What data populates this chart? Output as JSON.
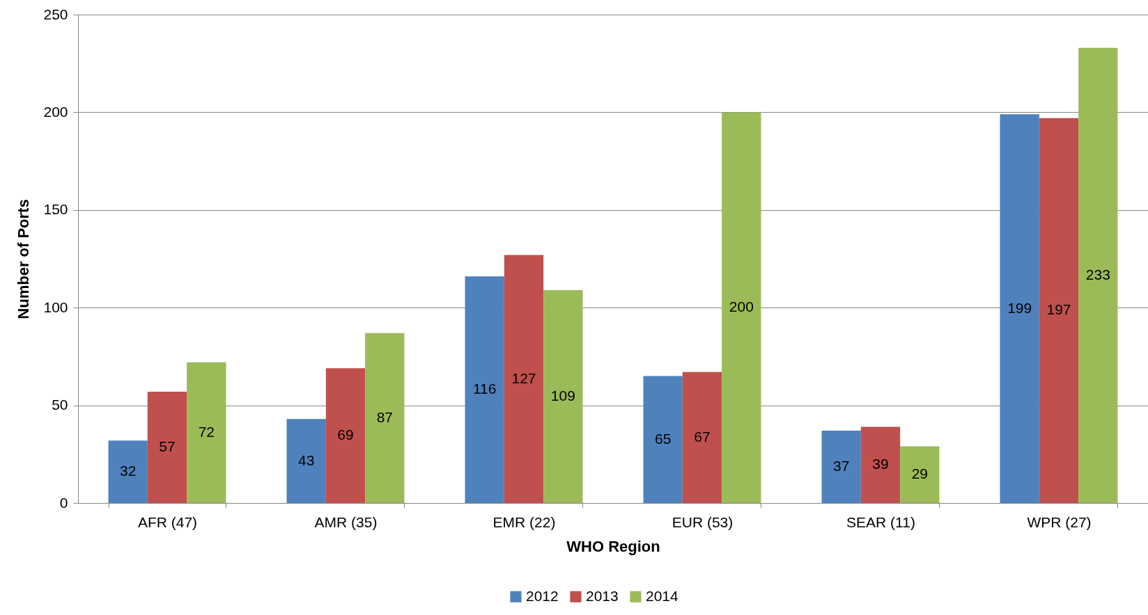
{
  "chart_data": {
    "type": "bar",
    "xlabel": "WHO Region",
    "ylabel": "Number of Ports",
    "categories": [
      "AFR (47)",
      "AMR (35)",
      "EMR (22)",
      "EUR (53)",
      "SEAR (11)",
      "WPR (27)"
    ],
    "series": [
      {
        "name": "2012",
        "color": "#4f81bd",
        "values": [
          32,
          43,
          116,
          65,
          37,
          199
        ]
      },
      {
        "name": "2013",
        "color": "#c0504d",
        "values": [
          57,
          69,
          127,
          67,
          39,
          197
        ]
      },
      {
        "name": "2014",
        "color": "#9bbb59",
        "values": [
          72,
          87,
          109,
          200,
          29,
          233
        ]
      }
    ],
    "ylim": [
      0,
      250
    ],
    "yticks": [
      0,
      50,
      100,
      150,
      200,
      250
    ],
    "grid": "y",
    "legend": "bottom",
    "data_labels": true
  }
}
